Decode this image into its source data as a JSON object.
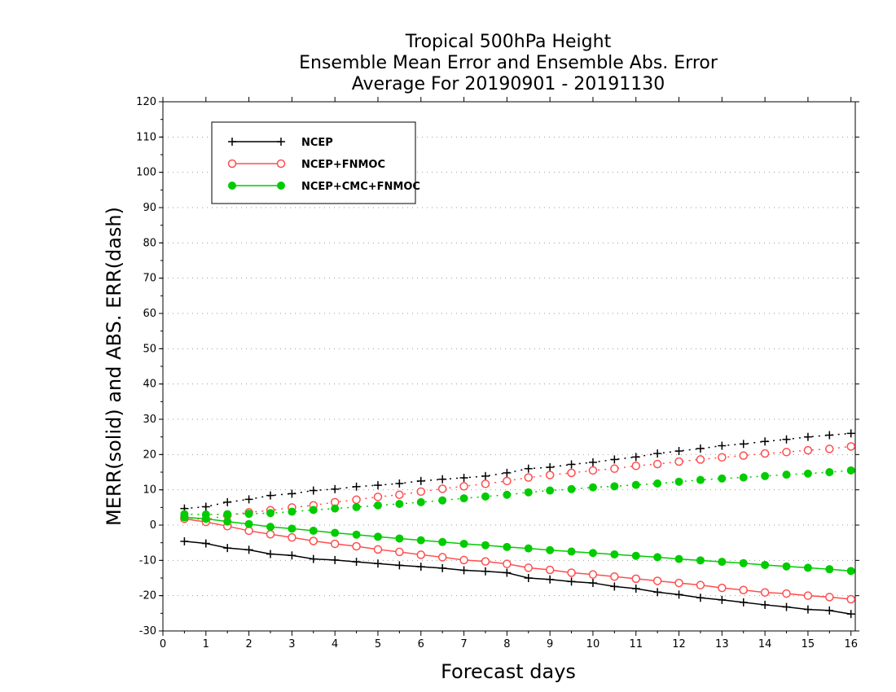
{
  "chart_data": {
    "type": "line",
    "title_lines": [
      "Tropical 500hPa Height",
      "Ensemble Mean Error and Ensemble Abs. Error",
      "Average For 20190901 - 20191130"
    ],
    "xlabel": "Forecast days",
    "ylabel": "MERR(solid) and ABS. ERR(dash)",
    "xlim": [
      0,
      16.1
    ],
    "ylim": [
      -30,
      120
    ],
    "xticks": [
      "0",
      "1",
      "2",
      "3",
      "4",
      "5",
      "6",
      "7",
      "8",
      "9",
      "10",
      "11",
      "12",
      "13",
      "14",
      "15",
      "16"
    ],
    "yticks": [
      "-30",
      "-20",
      "-10",
      "0",
      "10",
      "20",
      "30",
      "40",
      "50",
      "60",
      "70",
      "80",
      "90",
      "100",
      "110",
      "120"
    ],
    "grid": "horizontal dotted",
    "legend_position": "top-left",
    "x": [
      0.5,
      1,
      1.5,
      2,
      2.5,
      3,
      3.5,
      4,
      4.5,
      5,
      5.5,
      6,
      6.5,
      7,
      7.5,
      8,
      8.5,
      9,
      9.5,
      10,
      10.5,
      11,
      11.5,
      12,
      12.5,
      13,
      13.5,
      14,
      14.5,
      15,
      15.5,
      16
    ],
    "series": [
      {
        "name": "NCEP",
        "color": "#000000",
        "marker": "plus",
        "merr": [
          -4.6,
          -5.2,
          -6.5,
          -7,
          -8.2,
          -8.6,
          -9.6,
          -9.9,
          -10.4,
          -10.9,
          -11.4,
          -11.8,
          -12.2,
          -12.8,
          -13.1,
          -13.5,
          -15,
          -15.4,
          -16,
          -16.4,
          -17.4,
          -18,
          -19,
          -19.7,
          -20.6,
          -21.2,
          -21.9,
          -22.6,
          -23.2,
          -23.9,
          -24.2,
          -25.2
        ],
        "abs": [
          4.7,
          5.2,
          6.5,
          7.3,
          8.4,
          8.9,
          9.8,
          10.2,
          10.9,
          11.3,
          11.8,
          12.5,
          13,
          13.4,
          13.9,
          14.8,
          16,
          16.4,
          17.2,
          17.8,
          18.6,
          19.3,
          20.3,
          21,
          21.7,
          22.5,
          23,
          23.7,
          24.3,
          25,
          25.5,
          26
        ]
      },
      {
        "name": "NCEP+FNMOC",
        "color": "#ff4d4d",
        "marker": "open-circle",
        "merr": [
          1.8,
          0.9,
          -0.3,
          -1.6,
          -2.6,
          -3.5,
          -4.5,
          -5.3,
          -6,
          -6.9,
          -7.6,
          -8.4,
          -9.1,
          -9.9,
          -10.3,
          -11,
          -12.1,
          -12.7,
          -13.5,
          -14,
          -14.6,
          -15.2,
          -15.8,
          -16.4,
          -17,
          -17.8,
          -18.4,
          -19.1,
          -19.4,
          -20,
          -20.4,
          -21
        ]
      },
      {
        "name": "NCEP+CMC+FNMOC",
        "color": "#00cc00",
        "marker": "filled-circle",
        "merr": [
          2.2,
          1.8,
          1,
          0.3,
          -0.5,
          -1,
          -1.6,
          -2.2,
          -2.7,
          -3.3,
          -3.8,
          -4.3,
          -4.8,
          -5.3,
          -5.7,
          -6.2,
          -6.6,
          -7.1,
          -7.5,
          -7.9,
          -8.3,
          -8.7,
          -9.1,
          -9.6,
          -10,
          -10.4,
          -10.8,
          -11.3,
          -11.7,
          -12.1,
          -12.5,
          -13
        ]
      }
    ]
  }
}
